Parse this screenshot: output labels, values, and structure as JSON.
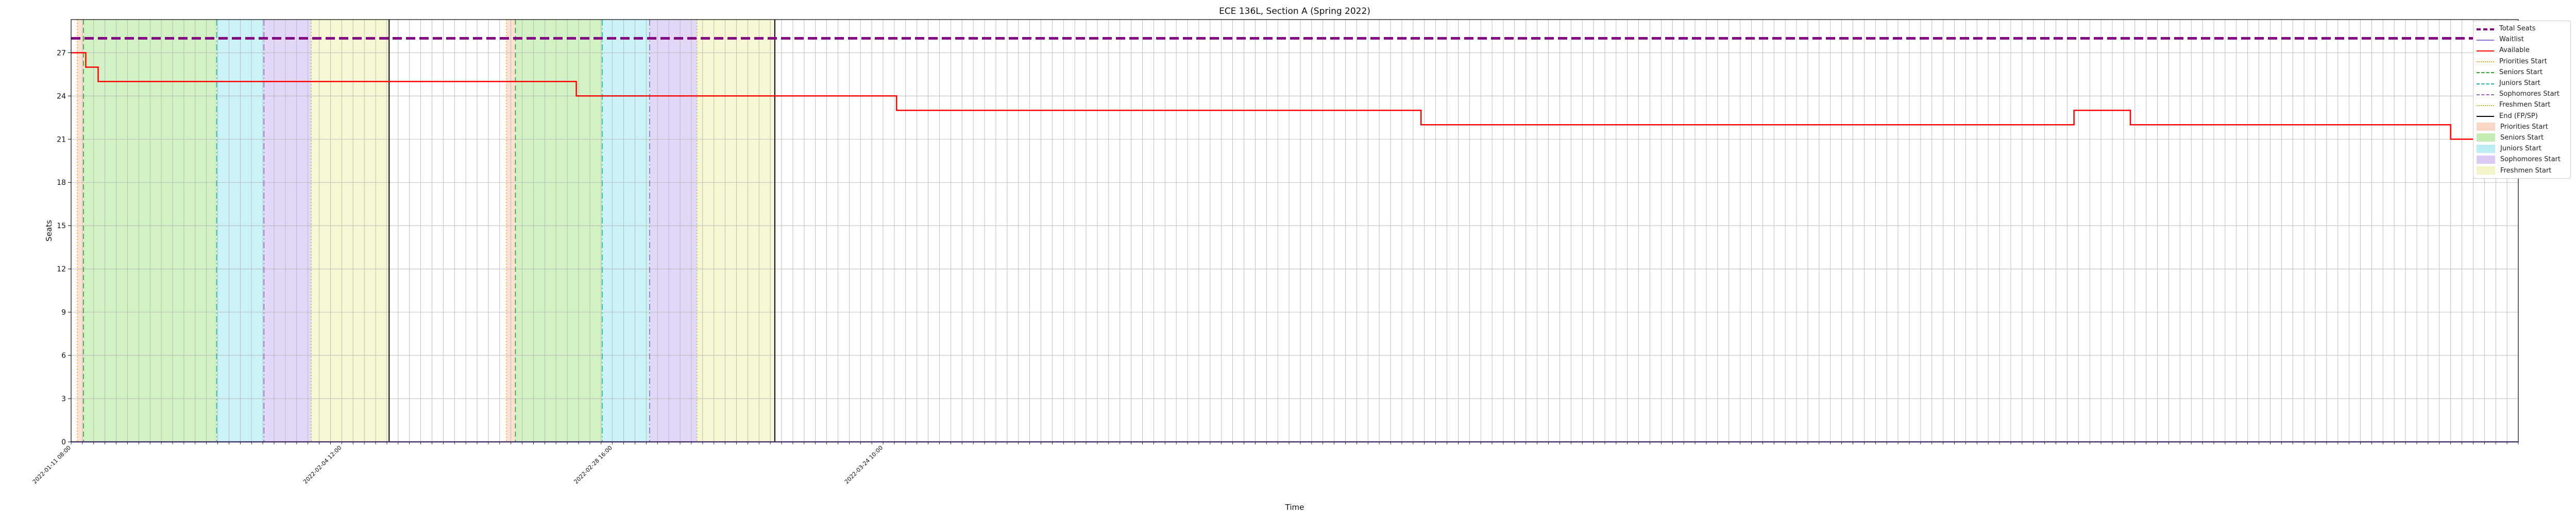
{
  "chart_data": {
    "type": "line",
    "title": "ECE 136L, Section A (Spring 2022)",
    "xlabel": "Time",
    "ylabel": "Seats",
    "ylim": [
      0,
      29.3
    ],
    "y_ticks": [
      0,
      3,
      6,
      9,
      12,
      15,
      18,
      21,
      24,
      27
    ],
    "x_count": 218,
    "x_ticks_shown": [
      "2022-01-11 08:00",
      "2022-02-04 12:00",
      "2022-02-28 16:00",
      "2022-03-24 10:00"
    ],
    "grid": true,
    "legend_placement": "outside-right",
    "series": [
      {
        "name": "Total Seats",
        "color": "#800080",
        "style": "dashed-thick",
        "points": [
          [
            0,
            28
          ],
          [
            217,
            28
          ]
        ]
      },
      {
        "name": "Waitlist",
        "color": "#9370db",
        "style": "solid",
        "points": [
          [
            0,
            0
          ],
          [
            217,
            0
          ]
        ]
      },
      {
        "name": "Available",
        "color": "#ff0000",
        "style": "step",
        "points": [
          [
            0,
            27
          ],
          [
            1.3,
            27
          ],
          [
            1.3,
            26
          ],
          [
            2.4,
            26
          ],
          [
            2.4,
            25
          ],
          [
            44.8,
            25
          ],
          [
            44.8,
            24
          ],
          [
            73.2,
            24
          ],
          [
            73.2,
            23
          ],
          [
            119.7,
            23
          ],
          [
            119.7,
            22
          ],
          [
            177.6,
            22
          ],
          [
            177.6,
            23
          ],
          [
            182.6,
            23
          ],
          [
            182.6,
            22
          ],
          [
            211,
            22
          ],
          [
            211,
            21
          ],
          [
            215.1,
            21
          ],
          [
            215.1,
            22
          ],
          [
            217,
            22
          ]
        ]
      }
    ],
    "phase_lines": [
      {
        "name": "Priorities Start",
        "color": "#ffa500",
        "style": "dotted",
        "x": [
          0.55,
          38.6
        ]
      },
      {
        "name": "Seniors Start",
        "color": "#2ca02c",
        "style": "dashed",
        "x": [
          1.1,
          39.4
        ]
      },
      {
        "name": "Juniors Start",
        "color": "#20b2aa",
        "style": "dashdot",
        "x": [
          12.9,
          47.1
        ]
      },
      {
        "name": "Sophomores Start",
        "color": "#9467bd",
        "style": "dashdot",
        "x": [
          17.1,
          51.3
        ]
      },
      {
        "name": "Freshmen Start",
        "color": "#bcbd22",
        "style": "dotted",
        "x": [
          21.3,
          55.5
        ]
      },
      {
        "name": "End (FP/SP)",
        "color": "#000000",
        "style": "solid",
        "x": [
          28.2,
          62.4
        ]
      }
    ],
    "phase_spans": [
      {
        "name": "Priorities Start",
        "color": "#f4a582",
        "ranges": [
          [
            0.55,
            1.1
          ],
          [
            38.6,
            39.4
          ]
        ]
      },
      {
        "name": "Seniors Start",
        "color": "#7fd65a",
        "ranges": [
          [
            1.1,
            12.9
          ],
          [
            39.4,
            47.1
          ]
        ]
      },
      {
        "name": "Juniors Start",
        "color": "#6ad9e6",
        "ranges": [
          [
            12.9,
            17.1
          ],
          [
            47.1,
            51.3
          ]
        ]
      },
      {
        "name": "Sophomores Start",
        "color": "#b08be8",
        "ranges": [
          [
            17.1,
            21.3
          ],
          [
            51.3,
            55.5
          ]
        ]
      },
      {
        "name": "Freshmen Start",
        "color": "#e8e888",
        "ranges": [
          [
            21.3,
            28.2
          ],
          [
            55.5,
            62.4
          ]
        ]
      }
    ],
    "legend": [
      {
        "label": "Total Seats",
        "kind": "line",
        "color": "#800080",
        "style": "dashed-thick"
      },
      {
        "label": "Waitlist",
        "kind": "line",
        "color": "#9370db",
        "style": "solid"
      },
      {
        "label": "Available",
        "kind": "line",
        "color": "#ff0000",
        "style": "solid"
      },
      {
        "label": "Priorities Start",
        "kind": "line",
        "color": "#ffa500",
        "style": "dotted"
      },
      {
        "label": "Seniors Start",
        "kind": "line",
        "color": "#2ca02c",
        "style": "dashed"
      },
      {
        "label": "Juniors Start",
        "kind": "line",
        "color": "#20b2aa",
        "style": "dashdot"
      },
      {
        "label": "Sophomores Start",
        "kind": "line",
        "color": "#9467bd",
        "style": "dashdot"
      },
      {
        "label": "Freshmen Start",
        "kind": "line",
        "color": "#bcbd22",
        "style": "dotted"
      },
      {
        "label": "End (FP/SP)",
        "kind": "line",
        "color": "#000000",
        "style": "solid"
      },
      {
        "label": "Priorities Start",
        "kind": "patch",
        "color": "#f4a582"
      },
      {
        "label": "Seniors Start",
        "kind": "patch",
        "color": "#7fd65a"
      },
      {
        "label": "Juniors Start",
        "kind": "patch",
        "color": "#6ad9e6"
      },
      {
        "label": "Sophomores Start",
        "kind": "patch",
        "color": "#b08be8"
      },
      {
        "label": "Freshmen Start",
        "kind": "patch",
        "color": "#e8e888"
      }
    ]
  }
}
